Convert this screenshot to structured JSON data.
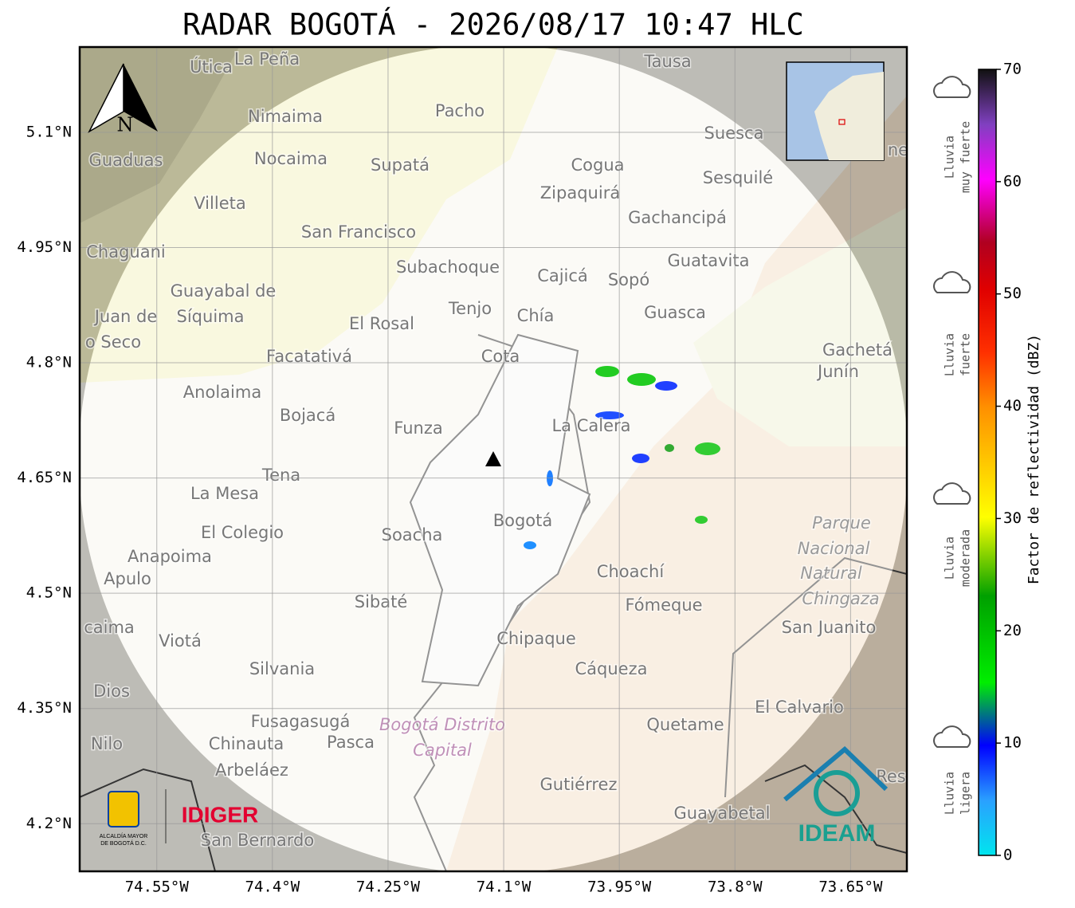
{
  "title": "RADAR BOGOTÁ - 2026/08/17 10:47 HLC",
  "north_label": "N",
  "map": {
    "xlim": [
      -74.65,
      -73.577
    ],
    "ylim": [
      4.138,
      5.211
    ],
    "xticks": [
      {
        "value": -74.55,
        "label": "74.55°W"
      },
      {
        "value": -74.4,
        "label": "74.4°W"
      },
      {
        "value": -74.25,
        "label": "74.25°W"
      },
      {
        "value": -74.1,
        "label": "74.1°W"
      },
      {
        "value": -73.95,
        "label": "73.95°W"
      },
      {
        "value": -73.8,
        "label": "73.8°W"
      },
      {
        "value": -73.65,
        "label": "73.65°W"
      }
    ],
    "yticks": [
      {
        "value": 5.1,
        "label": "5.1°N"
      },
      {
        "value": 4.95,
        "label": "4.95°N"
      },
      {
        "value": 4.8,
        "label": "4.8°N"
      },
      {
        "value": 4.65,
        "label": "4.65°N"
      },
      {
        "value": 4.5,
        "label": "4.5°N"
      },
      {
        "value": 4.35,
        "label": "4.35°N"
      },
      {
        "value": 4.2,
        "label": "4.2°N"
      }
    ],
    "grid": true,
    "places": [
      "Útica",
      "La Peña",
      "Tausa",
      "Pacho",
      "Nimaima",
      "Suesca",
      "Guaduas",
      "Nocaima",
      "Supatá",
      "Cogua",
      "Sesquilé",
      "Zipaquirá",
      "Villeta",
      "Gachancipá",
      "San Francisco",
      "Chaguani",
      "Guatavita",
      "Subachoque",
      "Cajicá",
      "Sopó",
      "Guayabal de",
      "Síquima",
      "Juan de",
      "Tenjo",
      "Chía",
      "Guasca",
      "El Rosal",
      "o Seco",
      "Gachetá",
      "Junín",
      "Facatativá",
      "Cota",
      "Anolaima",
      "Bojacá",
      "Funza",
      "La Calera",
      "Tena",
      "La Mesa",
      "El Colegio",
      "Soacha",
      "Bogotá",
      "Parque",
      "Nacional",
      "Natural",
      "Chingaza",
      "Anapoima",
      "Apulo",
      "Choachí",
      "Fómeque",
      "Sibaté",
      "San Juanito",
      "caima",
      "Viotá",
      "Chipaque",
      "Cáqueza",
      "Silvania",
      "Dios",
      "El Calvario",
      "Fusagasugá",
      "Bogotá Distrito",
      "Capital",
      "Quetame",
      "Nilo",
      "Chinauta",
      "Pasca",
      "Arbeláez",
      "Gutiérrez",
      "Guayabetal",
      "San Bernardo",
      "Res",
      "ne"
    ]
  },
  "colorbar": {
    "label": "Factor de reflectividad (dBZ)",
    "lim": [
      0,
      70
    ],
    "ticks": [
      0,
      10,
      20,
      30,
      40,
      50,
      60,
      70
    ]
  },
  "rain_levels": [
    [
      "Lluvia",
      "muy fuerte"
    ],
    [
      "Lluvia",
      "fuerte"
    ],
    [
      "Lluvia",
      "moderada"
    ],
    [
      "Lluvia",
      "ligera"
    ]
  ],
  "logos": {
    "alcaldia": [
      "ALCALDÍA MAYOR",
      "DE BOGOTÁ D.C."
    ],
    "idiger": "IDIGER",
    "ideam": "IDEAM"
  }
}
